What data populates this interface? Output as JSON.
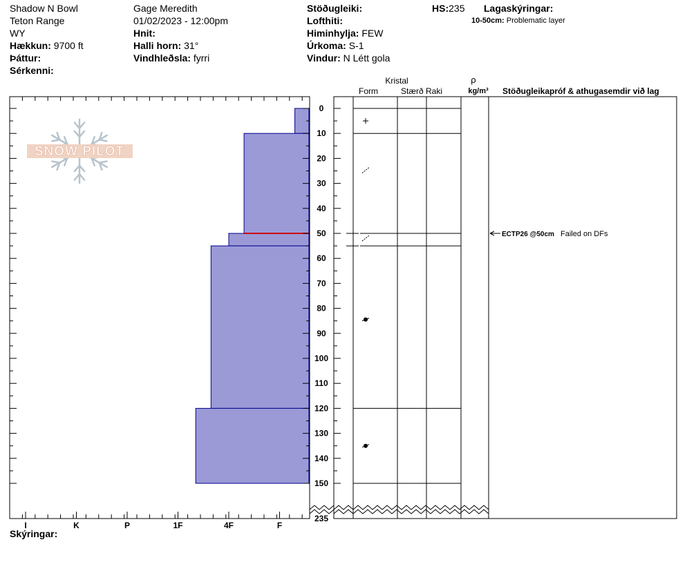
{
  "header": {
    "location": "Shadow N Bowl",
    "range": "Teton Range",
    "state": "WY",
    "elevation_label": "Hækkun:",
    "elevation_value": "9700 ft",
    "aspect_label": "Þáttur:",
    "features_label": "Sérkenni:",
    "observer": "Gage Meredith",
    "datetime": "01/02/2023 - 12:00pm",
    "coords_label": "Hnit:",
    "slope_label": "Halli horn:",
    "slope_value": "31°",
    "wind_loading_label": "Vindhleðsla:",
    "wind_loading_value": "fyrri",
    "stability_label": "Stöðugleiki:",
    "air_temp_label": "Lofthiti:",
    "sky_label": "Himinhylja:",
    "sky_value": "FEW",
    "precip_label": "Úrkoma:",
    "precip_value": "S-1",
    "wind_label": "Vindur:",
    "wind_value": "N Létt gola",
    "hs_label": "HS:",
    "hs_value": "235",
    "legend_title": "Lagaskýringar:",
    "legend_range": "10-50cm:",
    "legend_text": "Problematic layer"
  },
  "logo_text": "SNOW PILOT",
  "columns": {
    "crystal": "Kristal",
    "form": "Form",
    "size": "Stærð",
    "moisture": "Raki",
    "rho": "ρ",
    "density_unit": "kg/m³",
    "comments": "Stöðugleikapróf & athugasemdir við lag"
  },
  "footer": {
    "legend_label": "Skýringar:"
  },
  "test_result": {
    "code": "ECTP26 @50cm",
    "note": "Failed on DFs"
  },
  "chart_data": {
    "type": "bar",
    "ylim": [
      0,
      235
    ],
    "y_axis_break": true,
    "hardness_scale": [
      "I",
      "K",
      "P",
      "1F",
      "4F",
      "F"
    ],
    "depth_ticks": [
      0,
      10,
      20,
      30,
      40,
      50,
      60,
      70,
      80,
      90,
      100,
      110,
      120,
      130,
      140,
      150,
      235
    ],
    "layers": [
      {
        "top": 0,
        "bottom": 10,
        "hardness": "F",
        "hardness_index": 5.3,
        "grain_form": "new-snow"
      },
      {
        "top": 10,
        "bottom": 50,
        "hardness": "4F",
        "hardness_index": 4.3,
        "grain_form": "decomposing"
      },
      {
        "top": 50,
        "bottom": 55,
        "hardness": "4F-",
        "hardness_index": 4.0,
        "grain_form": "decomposing"
      },
      {
        "top": 55,
        "bottom": 120,
        "hardness": "1F+",
        "hardness_index": 3.65,
        "grain_form": "rounded"
      },
      {
        "top": 120,
        "bottom": 150,
        "hardness": "1F",
        "hardness_index": 3.35,
        "grain_form": "rounded"
      }
    ],
    "problematic_layer_depth": 50,
    "colors": {
      "layer_fill": "#9b9ad7",
      "layer_stroke": "#00008b",
      "problem_line": "#cc0000"
    }
  }
}
